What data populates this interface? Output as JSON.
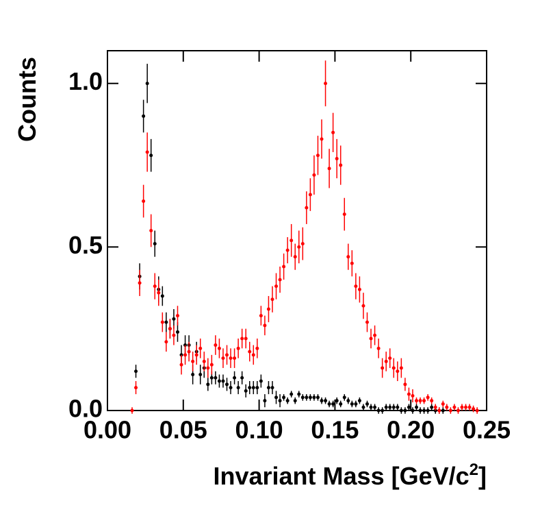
{
  "chart_data": {
    "type": "errorbar",
    "y_label": "Counts",
    "x_label": [
      "Invariant Mass [GeV/c",
      "2",
      "]"
    ],
    "xlim": [
      0,
      0.25
    ],
    "ylim": [
      0,
      1.1
    ],
    "xticks": [
      {
        "value": 0,
        "label": "0.00"
      },
      {
        "value": 0.05,
        "label": "0.05"
      },
      {
        "value": 0.1,
        "label": "0.10"
      },
      {
        "value": 0.15,
        "label": "0.15"
      },
      {
        "value": 0.2,
        "label": "0.20"
      },
      {
        "value": 0.25,
        "label": "0.25"
      }
    ],
    "yticks": [
      {
        "value": 0,
        "label": "0.0"
      },
      {
        "value": 0.5,
        "label": "0.5"
      },
      {
        "value": 1,
        "label": "1.0"
      }
    ],
    "x": [
      0.01625,
      0.01875,
      0.02125,
      0.02375,
      0.02625,
      0.02875,
      0.03125,
      0.03375,
      0.03625,
      0.03875,
      0.04125,
      0.04375,
      0.04625,
      0.04875,
      0.05125,
      0.05375,
      0.05625,
      0.05875,
      0.06125,
      0.06375,
      0.06625,
      0.06875,
      0.07125,
      0.07375,
      0.07625,
      0.07875,
      0.08125,
      0.08375,
      0.08625,
      0.08875,
      0.09125,
      0.09375,
      0.09625,
      0.09875,
      0.10125,
      0.10375,
      0.10625,
      0.10875,
      0.11125,
      0.11375,
      0.11625,
      0.11875,
      0.12125,
      0.12375,
      0.12625,
      0.12875,
      0.13125,
      0.13375,
      0.13625,
      0.13875,
      0.14125,
      0.14375,
      0.14625,
      0.14875,
      0.15125,
      0.15375,
      0.15625,
      0.15875,
      0.16125,
      0.16375,
      0.16625,
      0.16875,
      0.17125,
      0.17375,
      0.17625,
      0.17875,
      0.18125,
      0.18375,
      0.18625,
      0.18875,
      0.19125,
      0.19375,
      0.19625,
      0.19875,
      0.20125,
      0.20375,
      0.20625,
      0.20875,
      0.21125,
      0.21375,
      0.21625,
      0.21875,
      0.22125,
      0.22375,
      0.22625,
      0.22875,
      0.23125,
      0.23375,
      0.23625,
      0.23875,
      0.24125,
      0.24375
    ],
    "series": [
      {
        "color": "#000000",
        "values": [
          null,
          0.12,
          0.41,
          0.9,
          1.0,
          0.78,
          0.51,
          0.37,
          0.35,
          0.27,
          0.25,
          0.28,
          0.24,
          0.17,
          0.2,
          0.2,
          0.11,
          0.18,
          0.11,
          0.13,
          0.08,
          0.1,
          0.1,
          0.09,
          0.09,
          0.08,
          0.07,
          0.1,
          0.07,
          0.1,
          0.06,
          0.07,
          0.07,
          0.07,
          0.09,
          0.03,
          0.07,
          0.07,
          0.04,
          0.03,
          0.04,
          0.03,
          0.05,
          0.03,
          0.05,
          0.04,
          0.04,
          0.04,
          0.04,
          0.04,
          0.03,
          0.03,
          0.02,
          0.02,
          0.03,
          0.02,
          0.04,
          0.03,
          0.02,
          0.02,
          0.03,
          0.01,
          0.02,
          0.01,
          0.01,
          0,
          0,
          0.01,
          0.01,
          0.01,
          0.01,
          0,
          0,
          0.01,
          0,
          0.01,
          0,
          0,
          0,
          0.01,
          0,
          0,
          0,
          null,
          null,
          null,
          null,
          null,
          null,
          null,
          null,
          null
        ],
        "errors": [
          null,
          0.02,
          0.04,
          0.05,
          0.06,
          0.05,
          0.04,
          0.04,
          0.03,
          0.03,
          0.03,
          0.03,
          0.03,
          0.03,
          0.03,
          0.03,
          0.03,
          0.03,
          0.03,
          0.03,
          0.02,
          0.02,
          0.02,
          0.02,
          0.02,
          0.02,
          0.02,
          0.02,
          0.02,
          0.02,
          0.02,
          0.02,
          0.02,
          0.02,
          0.02,
          0.02,
          0.02,
          0.02,
          0.02,
          0.02,
          0.01,
          0.01,
          0.01,
          0.01,
          0.01,
          0.01,
          0.01,
          0.01,
          0.01,
          0.01,
          0.01,
          0.01,
          0.01,
          0.01,
          0.01,
          0.01,
          0.01,
          0.01,
          0.01,
          0.01,
          0.01,
          0.01,
          0.01,
          0.01,
          0.01,
          0.01,
          0.01,
          0.01,
          0.01,
          0.01,
          0.01,
          0.01,
          0.01,
          0.01,
          0.01,
          0.01,
          0.01,
          0.01,
          0.01,
          0.01,
          0.01,
          0.01,
          0.01,
          null,
          null,
          null,
          null,
          null,
          null,
          null,
          null,
          null
        ]
      },
      {
        "color": "#ff0000",
        "values": [
          0,
          0.07,
          0.39,
          0.64,
          0.79,
          0.55,
          0.38,
          0.36,
          0.27,
          0.21,
          0.25,
          0.23,
          0.29,
          0.14,
          0.17,
          0.18,
          0.15,
          0.17,
          0.19,
          0.15,
          0.13,
          0.14,
          0.2,
          0.19,
          0.16,
          0.17,
          0.16,
          0.16,
          0.19,
          0.22,
          0.22,
          0.18,
          0.17,
          0.19,
          0.29,
          0.26,
          0.31,
          0.34,
          0.38,
          0.4,
          0.44,
          0.49,
          0.52,
          0.47,
          0.5,
          0.51,
          0.62,
          0.66,
          0.72,
          0.78,
          0.83,
          1.0,
          0.74,
          0.85,
          0.77,
          0.75,
          0.6,
          0.47,
          0.45,
          0.38,
          0.37,
          0.32,
          0.27,
          0.22,
          0.23,
          0.19,
          0.13,
          0.15,
          0.16,
          0.13,
          0.12,
          0.13,
          0.08,
          0.05,
          0.045,
          0.03,
          0.03,
          0.03,
          0.04,
          0.03,
          0.01,
          0,
          0.02,
          0.01,
          0,
          0.01,
          0,
          0.01,
          0.01,
          0.01,
          0.005,
          0
        ],
        "errors": [
          0.01,
          0.02,
          0.04,
          0.05,
          0.06,
          0.05,
          0.04,
          0.04,
          0.03,
          0.03,
          0.03,
          0.03,
          0.03,
          0.03,
          0.03,
          0.03,
          0.03,
          0.03,
          0.03,
          0.03,
          0.03,
          0.03,
          0.03,
          0.03,
          0.03,
          0.03,
          0.03,
          0.03,
          0.03,
          0.03,
          0.03,
          0.03,
          0.03,
          0.03,
          0.03,
          0.03,
          0.04,
          0.04,
          0.04,
          0.04,
          0.04,
          0.04,
          0.05,
          0.04,
          0.05,
          0.05,
          0.05,
          0.05,
          0.06,
          0.06,
          0.06,
          0.07,
          0.06,
          0.06,
          0.06,
          0.06,
          0.05,
          0.04,
          0.04,
          0.04,
          0.04,
          0.04,
          0.03,
          0.03,
          0.03,
          0.03,
          0.03,
          0.03,
          0.03,
          0.03,
          0.03,
          0.03,
          0.02,
          0.02,
          0.02,
          0.01,
          0.01,
          0.01,
          0.01,
          0.01,
          0.01,
          0.01,
          0.01,
          0.01,
          0.01,
          0.01,
          0.01,
          0.01,
          0.01,
          0.01,
          0.01,
          0.01
        ]
      }
    ]
  }
}
